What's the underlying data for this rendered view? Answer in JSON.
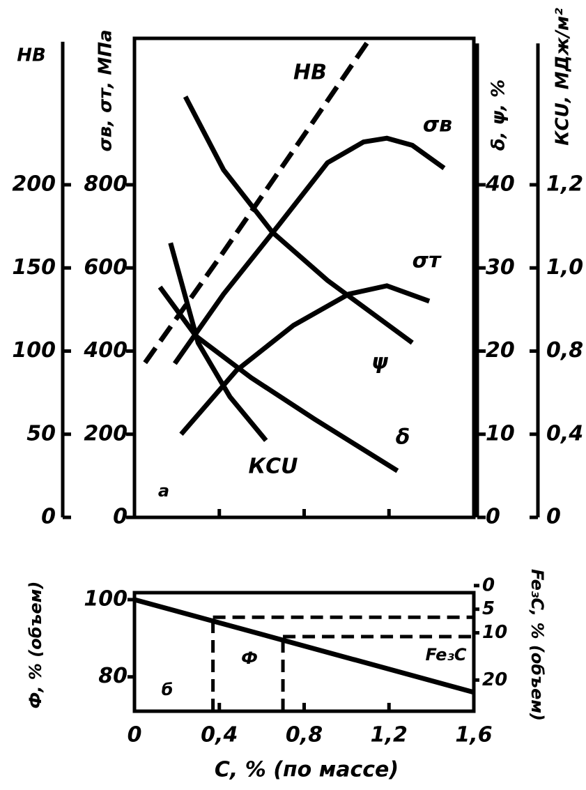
{
  "chart_data": [
    {
      "type": "line",
      "xlim": [
        0,
        1.6
      ],
      "axes": [
        {
          "label": "HB",
          "ylim": [
            0,
            286
          ],
          "yticks": [
            0,
            50,
            100,
            150,
            200
          ]
        },
        {
          "label": "σв, σт, МПа",
          "ylim": [
            0,
            1145
          ],
          "yticks": [
            0,
            200,
            400,
            600,
            800
          ]
        },
        {
          "label": "δ, ψ, %",
          "ylim": [
            0,
            57
          ],
          "yticks": [
            0,
            10,
            20,
            30,
            40
          ]
        },
        {
          "label": "КСU, МДж/м²",
          "ylim": [
            0,
            1.54
          ],
          "yticks": [
            0,
            {
              "value": 0.4,
              "label": "0,4"
            },
            {
              "value": 0.8,
              "label": "0,8"
            },
            {
              "value": 1.0,
              "label": "1,0"
            },
            {
              "value": 1.2,
              "label": "1,2"
            }
          ]
        }
      ],
      "annotation": "а",
      "series": [
        {
          "name": "НВ",
          "axis": 0,
          "dashed": true,
          "color": "#000",
          "x": [
            0.05,
            0.4,
            0.8,
            1.1
          ],
          "values": [
            93,
            156,
            230,
            286
          ]
        },
        {
          "name": "σв",
          "axis": 1,
          "color": "#000",
          "x": [
            0.19,
            0.42,
            0.68,
            0.91,
            1.08,
            1.19,
            1.31,
            1.46
          ],
          "values": [
            370,
            537,
            703,
            853,
            903,
            912,
            895,
            840
          ]
        },
        {
          "name": "σт",
          "axis": 1,
          "color": "#000",
          "x": [
            0.22,
            0.48,
            0.75,
            1.01,
            1.19,
            1.39
          ],
          "values": [
            200,
            353,
            462,
            537,
            557,
            520
          ]
        },
        {
          "name": "ψ",
          "axis": 2,
          "color": "#000",
          "x": [
            0.24,
            0.42,
            0.65,
            0.91,
            1.31
          ],
          "values": [
            50.6,
            41.8,
            34.3,
            28.5,
            21
          ]
        },
        {
          "name": "δ",
          "axis": 2,
          "color": "#000",
          "x": [
            0.12,
            0.29,
            0.55,
            0.85,
            1.24
          ],
          "values": [
            27.7,
            21.8,
            16.8,
            11.8,
            5.6
          ]
        },
        {
          "name": "КСU",
          "axis": 3,
          "color": "#000",
          "x": [
            0.17,
            0.3,
            0.45,
            0.62
          ],
          "values": [
            1.06,
            0.82,
            0.58,
            0.37
          ]
        }
      ]
    },
    {
      "type": "line",
      "xlim": [
        0,
        1.6
      ],
      "xticks": [
        0,
        {
          "value": 0.4,
          "label": "0,4"
        },
        {
          "value": 0.8,
          "label": "0,8"
        },
        {
          "value": 1.2,
          "label": "1,2"
        },
        {
          "value": 1.6,
          "label": "1,6"
        }
      ],
      "xlabel": "C, % (по массе)",
      "ylabel": "Ф, % (объем)",
      "ylim": [
        71.1,
        101.8
      ],
      "yticks": [
        80,
        100
      ],
      "y2label": "Fe₃C, % (объем)",
      "y2lim": [
        26.6,
        1.5
      ],
      "y2ticks": [
        0,
        5,
        10,
        20
      ],
      "vlines": [
        0.37,
        0.7
      ],
      "y2hlines": [
        6.7,
        10.8
      ],
      "annotations": [
        "б",
        "Ф",
        "Fe₃C"
      ],
      "series": [
        {
          "name": "Ф",
          "color": "#000",
          "x": [
            0,
            1.6
          ],
          "values": [
            100,
            76
          ]
        }
      ]
    }
  ]
}
